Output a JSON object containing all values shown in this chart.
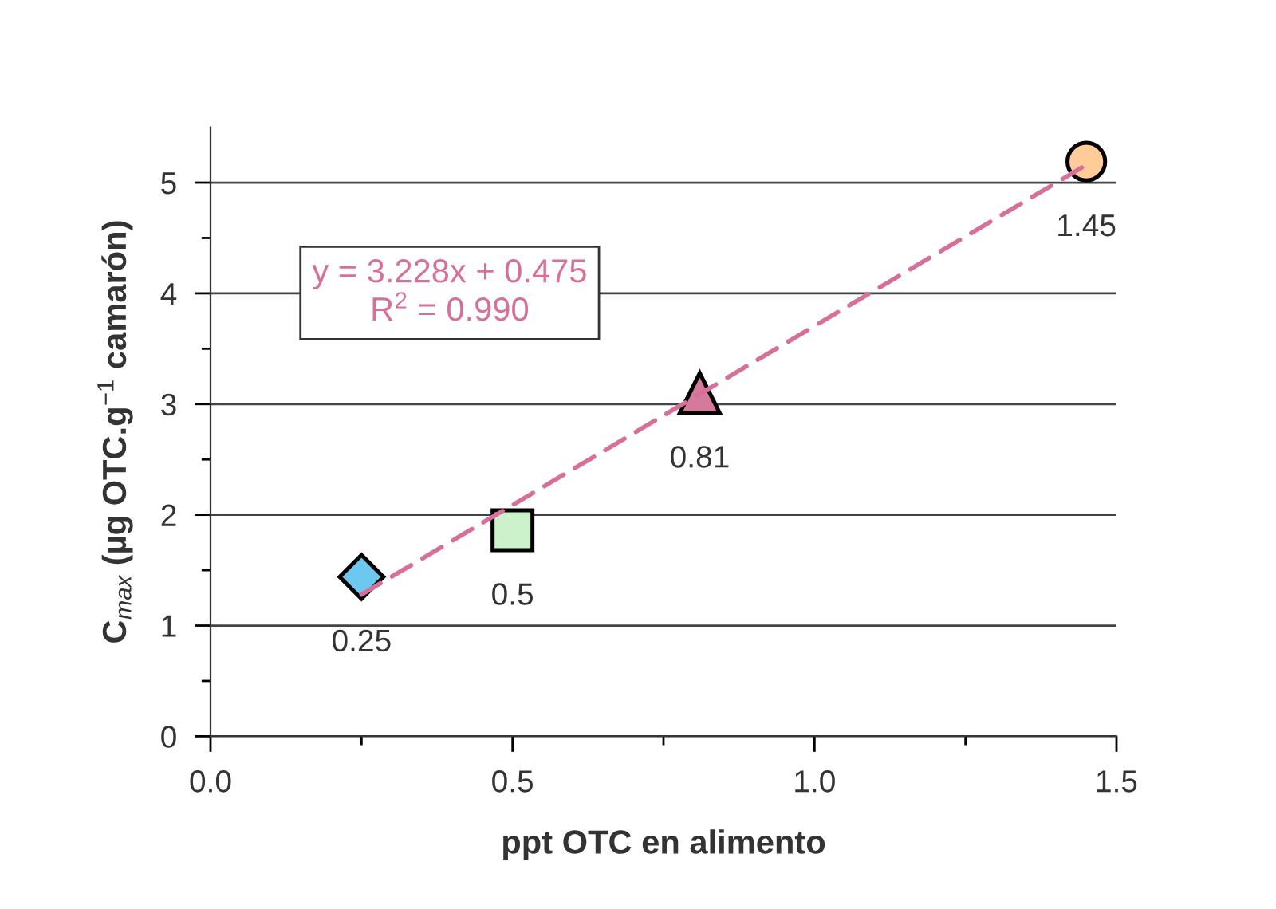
{
  "chart_data": {
    "type": "scatter",
    "xlabel": "ppt OTC en alimento",
    "ylabel": "C$_{max}$ (µg OTC.g$^{−1}$ camarón)",
    "annotations": [
      "y = 3.228x + 0.475",
      "R$^{2}$ = 0.990",
      {
        "text": "0.25",
        "x": 0.25,
        "y": 1.44
      },
      {
        "text": "0.5",
        "x": 0.5,
        "y": 1.86
      },
      {
        "text": "0.81",
        "x": 0.81,
        "y": 3.1
      },
      {
        "text": "1.45",
        "x": 1.45,
        "y": 5.19
      }
    ],
    "series": [
      {
        "x": [
          0.25
        ],
        "values": [
          1.44
        ],
        "color": "#6cc8ee",
        "marker": "diamond"
      },
      {
        "x": [
          0.5
        ],
        "values": [
          1.86
        ],
        "color": "#ccf2cc",
        "marker": "square"
      },
      {
        "x": [
          0.81
        ],
        "values": [
          3.1
        ],
        "color": "#d47a9c",
        "marker": "triangle"
      },
      {
        "x": [
          1.45
        ],
        "values": [
          5.19
        ],
        "color": "#ffcc99",
        "marker": "circle"
      },
      {
        "type": "line",
        "x": [
          0.25,
          1.45
        ],
        "values": [
          1.28,
          5.16
        ],
        "color": "#d6709a",
        "line_style": "dashed"
      }
    ],
    "xlim": [
      0,
      1.5
    ],
    "ylim": [
      0,
      5.5
    ],
    "xticks": [
      {
        "value": 0,
        "label": "0.0"
      },
      {
        "value": 0.25,
        "label": null
      },
      0.5,
      {
        "value": 0.75,
        "label": null
      },
      {
        "value": 1,
        "label": "1.0"
      },
      {
        "value": 1.25,
        "label": null
      },
      1.5
    ],
    "yticks": [
      0,
      {
        "value": 0.5,
        "label": null
      },
      1,
      {
        "value": 1.5,
        "label": null
      },
      2,
      {
        "value": 2.5,
        "label": null
      },
      3,
      {
        "value": 3.5,
        "label": null
      },
      4,
      {
        "value": 4.5,
        "label": null
      },
      5
    ],
    "grid": "y"
  }
}
